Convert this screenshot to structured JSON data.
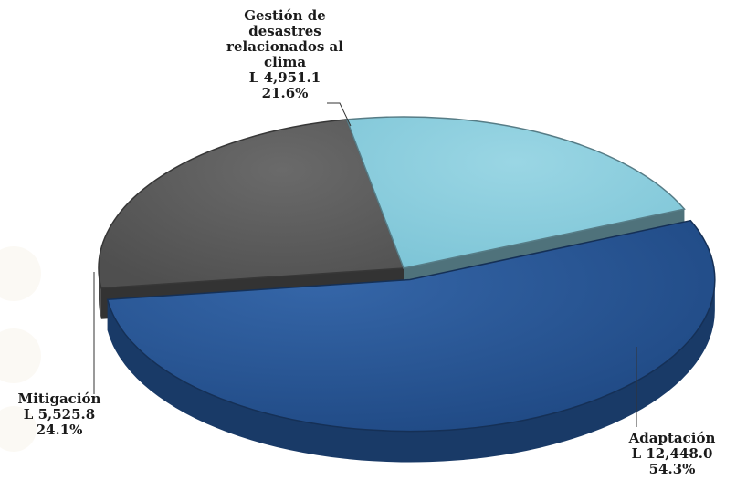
{
  "chart_data": {
    "type": "pie",
    "style": "3d",
    "title": "",
    "unit_prefix": "L",
    "slices": [
      {
        "name": "Adaptación",
        "name_lines": [
          "Adaptación"
        ],
        "value": "12,448.0",
        "value_num": 12448.0,
        "percent": "54.3%",
        "percent_num": 54.3,
        "color": "#23508f",
        "exploded": true
      },
      {
        "name": "Mitigación",
        "name_lines": [
          "Mitigación"
        ],
        "value": "5,525.8",
        "value_num": 5525.8,
        "percent": "24.1%",
        "percent_num": 24.1,
        "color": "#5c5c5c",
        "exploded": false
      },
      {
        "name": "Gestión de desastres relacionados al clima",
        "name_lines": [
          "Gestión de",
          "desastres",
          "relacionados al",
          "clima"
        ],
        "value": "4,951.1",
        "value_num": 4951.1,
        "percent": "21.6%",
        "percent_num": 21.6,
        "color": "#8fcfdf",
        "exploded": false
      }
    ]
  }
}
